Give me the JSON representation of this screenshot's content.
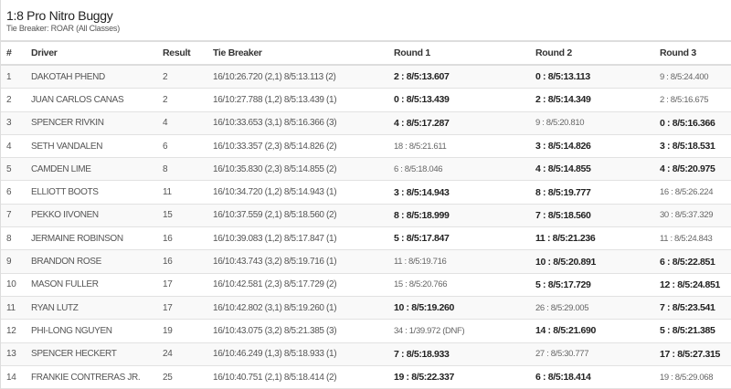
{
  "header": {
    "title": "1:8 Pro Nitro Buggy",
    "subtitle": "Tie Breaker: ROAR (All Classes)"
  },
  "columns": [
    "#",
    "Driver",
    "Result",
    "Tie Breaker",
    "Round 1",
    "Round 2",
    "Round 3"
  ],
  "rows": [
    {
      "pos": "1",
      "driver": "DAKOTAH PHEND",
      "result": "2",
      "tiebreaker": "16/10:26.720 (2,1) 8/5:13.113 (2)",
      "rounds": [
        {
          "text": "2 : 8/5:13.607",
          "counted": true
        },
        {
          "text": "0 : 8/5:13.113",
          "counted": true
        },
        {
          "text": "9 : 8/5:24.400",
          "counted": false
        }
      ]
    },
    {
      "pos": "2",
      "driver": "JUAN CARLOS CANAS",
      "result": "2",
      "tiebreaker": "16/10:27.788 (1,2) 8/5:13.439 (1)",
      "rounds": [
        {
          "text": "0 : 8/5:13.439",
          "counted": true
        },
        {
          "text": "2 : 8/5:14.349",
          "counted": true
        },
        {
          "text": "2 : 8/5:16.675",
          "counted": false
        }
      ]
    },
    {
      "pos": "3",
      "driver": "SPENCER RIVKIN",
      "result": "4",
      "tiebreaker": "16/10:33.653 (3,1) 8/5:16.366 (3)",
      "rounds": [
        {
          "text": "4 : 8/5:17.287",
          "counted": true
        },
        {
          "text": "9 : 8/5:20.810",
          "counted": false
        },
        {
          "text": "0 : 8/5:16.366",
          "counted": true
        }
      ]
    },
    {
      "pos": "4",
      "driver": "SETH VANDALEN",
      "result": "6",
      "tiebreaker": "16/10:33.357 (2,3) 8/5:14.826 (2)",
      "rounds": [
        {
          "text": "18 : 8/5:21.611",
          "counted": false
        },
        {
          "text": "3 : 8/5:14.826",
          "counted": true
        },
        {
          "text": "3 : 8/5:18.531",
          "counted": true
        }
      ]
    },
    {
      "pos": "5",
      "driver": "CAMDEN LIME",
      "result": "8",
      "tiebreaker": "16/10:35.830 (2,3) 8/5:14.855 (2)",
      "rounds": [
        {
          "text": "6 : 8/5:18.046",
          "counted": false
        },
        {
          "text": "4 : 8/5:14.855",
          "counted": true
        },
        {
          "text": "4 : 8/5:20.975",
          "counted": true
        }
      ]
    },
    {
      "pos": "6",
      "driver": "ELLIOTT BOOTS",
      "result": "11",
      "tiebreaker": "16/10:34.720 (1,2) 8/5:14.943 (1)",
      "rounds": [
        {
          "text": "3 : 8/5:14.943",
          "counted": true
        },
        {
          "text": "8 : 8/5:19.777",
          "counted": true
        },
        {
          "text": "16 : 8/5:26.224",
          "counted": false
        }
      ]
    },
    {
      "pos": "7",
      "driver": "PEKKO IIVONEN",
      "result": "15",
      "tiebreaker": "16/10:37.559 (2,1) 8/5:18.560 (2)",
      "rounds": [
        {
          "text": "8 : 8/5:18.999",
          "counted": true
        },
        {
          "text": "7 : 8/5:18.560",
          "counted": true
        },
        {
          "text": "30 : 8/5:37.329",
          "counted": false
        }
      ]
    },
    {
      "pos": "8",
      "driver": "JERMAINE ROBINSON",
      "result": "16",
      "tiebreaker": "16/10:39.083 (1,2) 8/5:17.847 (1)",
      "rounds": [
        {
          "text": "5 : 8/5:17.847",
          "counted": true
        },
        {
          "text": "11 : 8/5:21.236",
          "counted": true
        },
        {
          "text": "11 : 8/5:24.843",
          "counted": false
        }
      ]
    },
    {
      "pos": "9",
      "driver": "BRANDON ROSE",
      "result": "16",
      "tiebreaker": "16/10:43.743 (3,2) 8/5:19.716 (1)",
      "rounds": [
        {
          "text": "11 : 8/5:19.716",
          "counted": false
        },
        {
          "text": "10 : 8/5:20.891",
          "counted": true
        },
        {
          "text": "6 : 8/5:22.851",
          "counted": true
        }
      ]
    },
    {
      "pos": "10",
      "driver": "MASON FULLER",
      "result": "17",
      "tiebreaker": "16/10:42.581 (2,3) 8/5:17.729 (2)",
      "rounds": [
        {
          "text": "15 : 8/5:20.766",
          "counted": false
        },
        {
          "text": "5 : 8/5:17.729",
          "counted": true
        },
        {
          "text": "12 : 8/5:24.851",
          "counted": true
        }
      ]
    },
    {
      "pos": "11",
      "driver": "RYAN LUTZ",
      "result": "17",
      "tiebreaker": "16/10:42.802 (3,1) 8/5:19.260 (1)",
      "rounds": [
        {
          "text": "10 : 8/5:19.260",
          "counted": true
        },
        {
          "text": "26 : 8/5:29.005",
          "counted": false
        },
        {
          "text": "7 : 8/5:23.541",
          "counted": true
        }
      ]
    },
    {
      "pos": "12",
      "driver": "PHI-LONG NGUYEN",
      "result": "19",
      "tiebreaker": "16/10:43.075 (3,2) 8/5:21.385 (3)",
      "rounds": [
        {
          "text": "34 : 1/39.972 (DNF)",
          "counted": false
        },
        {
          "text": "14 : 8/5:21.690",
          "counted": true
        },
        {
          "text": "5 : 8/5:21.385",
          "counted": true
        }
      ]
    },
    {
      "pos": "13",
      "driver": "SPENCER HECKERT",
      "result": "24",
      "tiebreaker": "16/10:46.249 (1,3) 8/5:18.933 (1)",
      "rounds": [
        {
          "text": "7 : 8/5:18.933",
          "counted": true
        },
        {
          "text": "27 : 8/5:30.777",
          "counted": false
        },
        {
          "text": "17 : 8/5:27.315",
          "counted": true
        }
      ]
    },
    {
      "pos": "14",
      "driver": "FRANKIE CONTRERAS JR.",
      "result": "25",
      "tiebreaker": "16/10:40.751 (2,1) 8/5:18.414 (2)",
      "rounds": [
        {
          "text": "19 : 8/5:22.337",
          "counted": true
        },
        {
          "text": "6 : 8/5:18.414",
          "counted": true
        },
        {
          "text": "19 : 8/5:29.068",
          "counted": false
        }
      ]
    }
  ]
}
